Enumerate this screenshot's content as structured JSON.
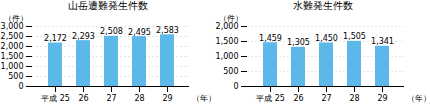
{
  "chart_data": [
    {
      "type": "bar",
      "title": "山岳遭難発生件数",
      "ylabel": "（件）",
      "xlabel": "（年）",
      "categories": [
        "平成 25",
        "26",
        "27",
        "28",
        "29"
      ],
      "values": [
        2172,
        2293,
        2508,
        2495,
        2583
      ],
      "value_labels": [
        "2,172",
        "2,293",
        "2,508",
        "2,495",
        "2,583"
      ],
      "data_labels": true,
      "color": "#5BB8E8",
      "ylim": [
        0,
        3000
      ],
      "yticks": [
        0,
        500,
        {
          "value": 1000,
          "label": "1,000"
        },
        {
          "value": 1500,
          "label": "1,500"
        },
        {
          "value": 2000,
          "label": "2,000"
        },
        {
          "value": 2500,
          "label": "2,500"
        },
        {
          "value": 3000,
          "label": "3,000"
        }
      ],
      "grid": true
    },
    {
      "type": "bar",
      "title": "水難発生件数",
      "ylabel": "（件）",
      "xlabel": "（年）",
      "categories": [
        "平成 25",
        "26",
        "27",
        "28",
        "29"
      ],
      "values": [
        1459,
        1305,
        1450,
        1505,
        1341
      ],
      "value_labels": [
        "1,459",
        "1,305",
        "1,450",
        "1,505",
        "1,341"
      ],
      "data_labels": true,
      "color": "#5BB8E8",
      "ylim": [
        0,
        2000
      ],
      "yticks": [
        0,
        500,
        {
          "value": 1000,
          "label": "1,000"
        },
        {
          "value": 1500,
          "label": "1,500"
        },
        {
          "value": 2000,
          "label": "2,000"
        }
      ],
      "grid": true
    }
  ]
}
